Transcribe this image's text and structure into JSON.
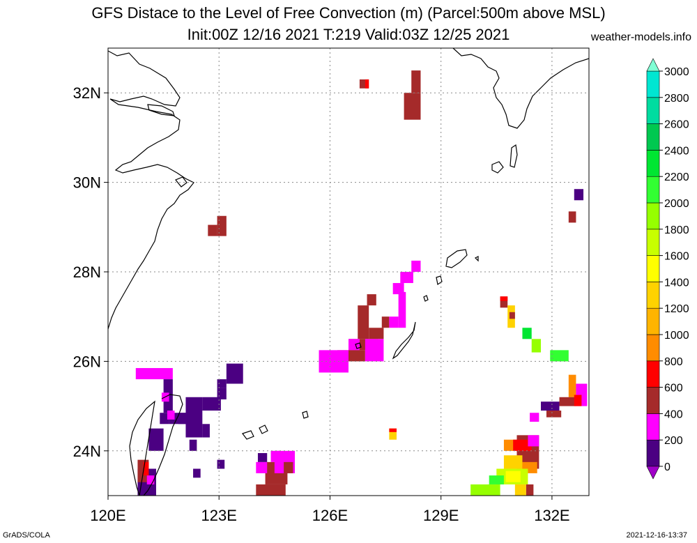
{
  "header": {
    "title_line1": "GFS Distace to the Level of Free Convection (m) (Parcel:500m above MSL)",
    "title_line2": "Init:00Z 12/16 2021 T:219 Valid:03Z 12/25 2021",
    "site": "weather-models.info"
  },
  "footer": {
    "left": "GrADS/COLA",
    "right": "2021-12-16-13:37"
  },
  "map": {
    "lon_range": [
      120,
      133
    ],
    "lat_range": [
      23,
      33
    ],
    "lon_ticks": [
      {
        "value": 120,
        "label": "120E"
      },
      {
        "value": 123,
        "label": "123E"
      },
      {
        "value": 126,
        "label": "126E"
      },
      {
        "value": 129,
        "label": "129E"
      },
      {
        "value": 132,
        "label": "132E"
      }
    ],
    "lat_ticks": [
      {
        "value": 24,
        "label": "24N"
      },
      {
        "value": 26,
        "label": "26N"
      },
      {
        "value": 28,
        "label": "28N"
      },
      {
        "value": 30,
        "label": "30N"
      },
      {
        "value": 32,
        "label": "32N"
      }
    ],
    "grid": true,
    "coastline_color": "#000000"
  },
  "colorbar": {
    "levels": [
      "0",
      "200",
      "400",
      "600",
      "800",
      "1000",
      "1200",
      "1400",
      "1600",
      "1800",
      "2000",
      "2200",
      "2400",
      "2600",
      "2800",
      "3000"
    ],
    "colors": [
      "#a000c8",
      "#4b0082",
      "#ff00ff",
      "#a52a2a",
      "#ff0000",
      "#ff8c00",
      "#ffb400",
      "#ffd200",
      "#ffff00",
      "#c8ff00",
      "#96ff00",
      "#32ff32",
      "#00e632",
      "#00c850",
      "#00dca0",
      "#00e6d2",
      "#00ffff"
    ],
    "ends": {
      "top_color": "#7fffd4",
      "bottom_color": "#a000c8"
    }
  },
  "field_cells": [
    {
      "lon": 126.8,
      "lat": 32.1,
      "w": 0.25,
      "h": 0.2,
      "color": "#a52a2a"
    },
    {
      "lon": 126.95,
      "lat": 32.1,
      "w": 0.1,
      "h": 0.2,
      "color": "#ff0000"
    },
    {
      "lon": 128.0,
      "lat": 31.4,
      "w": 0.45,
      "h": 0.6,
      "color": "#a52a2a"
    },
    {
      "lon": 128.2,
      "lat": 32.0,
      "w": 0.25,
      "h": 0.5,
      "color": "#a52a2a"
    },
    {
      "lon": 122.7,
      "lat": 28.8,
      "w": 0.25,
      "h": 0.25,
      "color": "#a52a2a"
    },
    {
      "lon": 122.95,
      "lat": 28.8,
      "w": 0.25,
      "h": 0.45,
      "color": "#a52a2a"
    },
    {
      "lon": 132.6,
      "lat": 29.6,
      "w": 0.25,
      "h": 0.25,
      "color": "#4b0082"
    },
    {
      "lon": 132.45,
      "lat": 29.1,
      "w": 0.2,
      "h": 0.25,
      "color": "#a52a2a"
    },
    {
      "lon": 128.2,
      "lat": 28.0,
      "w": 0.25,
      "h": 0.25,
      "color": "#ff00ff"
    },
    {
      "lon": 127.9,
      "lat": 27.75,
      "w": 0.35,
      "h": 0.25,
      "color": "#ff00ff"
    },
    {
      "lon": 127.7,
      "lat": 27.5,
      "w": 0.3,
      "h": 0.25,
      "color": "#ff00ff"
    },
    {
      "lon": 127.85,
      "lat": 26.75,
      "w": 0.2,
      "h": 0.8,
      "color": "#ff00ff"
    },
    {
      "lon": 127.6,
      "lat": 26.75,
      "w": 0.25,
      "h": 0.25,
      "color": "#ff00ff"
    },
    {
      "lon": 127.4,
      "lat": 26.75,
      "w": 0.2,
      "h": 0.25,
      "color": "#a52a2a"
    },
    {
      "lon": 127.0,
      "lat": 27.25,
      "w": 0.25,
      "h": 0.25,
      "color": "#a52a2a"
    },
    {
      "lon": 126.75,
      "lat": 26.5,
      "w": 0.3,
      "h": 0.75,
      "color": "#a52a2a"
    },
    {
      "lon": 127.05,
      "lat": 26.5,
      "w": 0.4,
      "h": 0.25,
      "color": "#a52a2a"
    },
    {
      "lon": 126.5,
      "lat": 26.25,
      "w": 0.8,
      "h": 0.25,
      "color": "#a52a2a"
    },
    {
      "lon": 126.2,
      "lat": 26.0,
      "w": 0.75,
      "h": 0.25,
      "color": "#a52a2a"
    },
    {
      "lon": 126.95,
      "lat": 26.0,
      "w": 0.5,
      "h": 0.5,
      "color": "#ff00ff"
    },
    {
      "lon": 125.7,
      "lat": 25.75,
      "w": 0.8,
      "h": 0.5,
      "color": "#ff00ff"
    },
    {
      "lon": 126.5,
      "lat": 26.25,
      "w": 0.3,
      "h": 0.25,
      "color": "#ff00ff"
    },
    {
      "lon": 120.75,
      "lat": 25.6,
      "w": 1.0,
      "h": 0.25,
      "color": "#ff00ff"
    },
    {
      "lon": 121.5,
      "lat": 24.85,
      "w": 0.25,
      "h": 0.75,
      "color": "#4b0082"
    },
    {
      "lon": 121.4,
      "lat": 24.6,
      "w": 0.25,
      "h": 0.25,
      "color": "#4b0082"
    },
    {
      "lon": 121.65,
      "lat": 24.6,
      "w": 0.5,
      "h": 0.25,
      "color": "#4b0082"
    },
    {
      "lon": 121.1,
      "lat": 24.0,
      "w": 0.4,
      "h": 0.5,
      "color": "#4b0082"
    },
    {
      "lon": 122.1,
      "lat": 24.3,
      "w": 0.45,
      "h": 0.9,
      "color": "#4b0082"
    },
    {
      "lon": 121.9,
      "lat": 24.6,
      "w": 0.25,
      "h": 0.25,
      "color": "#4b0082"
    },
    {
      "lon": 122.55,
      "lat": 24.3,
      "w": 0.2,
      "h": 0.3,
      "color": "#4b0082"
    },
    {
      "lon": 122.55,
      "lat": 24.9,
      "w": 0.5,
      "h": 0.3,
      "color": "#4b0082"
    },
    {
      "lon": 122.95,
      "lat": 25.15,
      "w": 0.25,
      "h": 0.25,
      "color": "#4b0082"
    },
    {
      "lon": 123.2,
      "lat": 25.5,
      "w": 0.45,
      "h": 0.45,
      "color": "#4b0082"
    },
    {
      "lon": 122.95,
      "lat": 25.4,
      "w": 0.25,
      "h": 0.2,
      "color": "#4b0082"
    },
    {
      "lon": 122.2,
      "lat": 24.0,
      "w": 0.2,
      "h": 0.25,
      "color": "#4b0082"
    },
    {
      "lon": 122.3,
      "lat": 23.4,
      "w": 0.2,
      "h": 0.2,
      "color": "#4b0082"
    },
    {
      "lon": 122.95,
      "lat": 23.6,
      "w": 0.2,
      "h": 0.2,
      "color": "#4b0082"
    },
    {
      "lon": 120.8,
      "lat": 23.0,
      "w": 0.5,
      "h": 0.6,
      "color": "#4b0082"
    },
    {
      "lon": 120.8,
      "lat": 23.3,
      "w": 0.3,
      "h": 0.5,
      "color": "#a52a2a"
    },
    {
      "lon": 120.95,
      "lat": 23.45,
      "w": 0.15,
      "h": 0.3,
      "color": "#ff0000"
    },
    {
      "lon": 121.05,
      "lat": 23.25,
      "w": 0.2,
      "h": 0.2,
      "color": "#ff00ff"
    },
    {
      "lon": 121.45,
      "lat": 25.1,
      "w": 0.2,
      "h": 0.2,
      "color": "#ff00ff"
    },
    {
      "lon": 121.6,
      "lat": 24.7,
      "w": 0.2,
      "h": 0.2,
      "color": "#ff00ff"
    },
    {
      "lon": 124.0,
      "lat": 23.0,
      "w": 0.8,
      "h": 0.25,
      "color": "#a52a2a"
    },
    {
      "lon": 124.25,
      "lat": 23.25,
      "w": 0.6,
      "h": 0.5,
      "color": "#a52a2a"
    },
    {
      "lon": 124.0,
      "lat": 23.5,
      "w": 0.3,
      "h": 0.25,
      "color": "#ff00ff"
    },
    {
      "lon": 124.5,
      "lat": 23.5,
      "w": 0.55,
      "h": 0.5,
      "color": "#ff00ff"
    },
    {
      "lon": 124.75,
      "lat": 23.5,
      "w": 0.25,
      "h": 0.25,
      "color": "#a52a2a"
    },
    {
      "lon": 124.4,
      "lat": 23.75,
      "w": 0.25,
      "h": 0.25,
      "color": "#ff00ff"
    },
    {
      "lon": 124.05,
      "lat": 23.75,
      "w": 0.25,
      "h": 0.2,
      "color": "#4b0082"
    },
    {
      "lon": 127.6,
      "lat": 24.25,
      "w": 0.2,
      "h": 0.25,
      "color": "#ffd200"
    },
    {
      "lon": 127.6,
      "lat": 24.42,
      "w": 0.2,
      "h": 0.08,
      "color": "#ff0000"
    },
    {
      "lon": 130.6,
      "lat": 27.2,
      "w": 0.2,
      "h": 0.25,
      "color": "#a52a2a"
    },
    {
      "lon": 130.6,
      "lat": 27.35,
      "w": 0.2,
      "h": 0.1,
      "color": "#ff0000"
    },
    {
      "lon": 130.8,
      "lat": 26.75,
      "w": 0.2,
      "h": 0.5,
      "color": "#ffd200"
    },
    {
      "lon": 130.85,
      "lat": 26.95,
      "w": 0.15,
      "h": 0.15,
      "color": "#a52a2a"
    },
    {
      "lon": 131.2,
      "lat": 26.5,
      "w": 0.25,
      "h": 0.25,
      "color": "#00e632"
    },
    {
      "lon": 131.45,
      "lat": 26.2,
      "w": 0.25,
      "h": 0.3,
      "color": "#96ff00"
    },
    {
      "lon": 131.95,
      "lat": 26.0,
      "w": 0.5,
      "h": 0.25,
      "color": "#32ff32"
    },
    {
      "lon": 132.45,
      "lat": 25.2,
      "w": 0.2,
      "h": 0.5,
      "color": "#ff8c00"
    },
    {
      "lon": 132.2,
      "lat": 25.0,
      "w": 0.45,
      "h": 0.2,
      "color": "#a52a2a"
    },
    {
      "lon": 132.65,
      "lat": 25.0,
      "w": 0.3,
      "h": 0.5,
      "color": "#ff00ff"
    },
    {
      "lon": 132.6,
      "lat": 25.0,
      "w": 0.2,
      "h": 0.25,
      "color": "#ff0000"
    },
    {
      "lon": 131.7,
      "lat": 24.9,
      "w": 0.5,
      "h": 0.2,
      "color": "#4b0082"
    },
    {
      "lon": 131.85,
      "lat": 24.75,
      "w": 0.4,
      "h": 0.15,
      "color": "#a52a2a"
    },
    {
      "lon": 131.4,
      "lat": 24.65,
      "w": 0.25,
      "h": 0.2,
      "color": "#ff00ff"
    },
    {
      "lon": 130.7,
      "lat": 24.0,
      "w": 0.5,
      "h": 0.25,
      "color": "#ff8c00"
    },
    {
      "lon": 131.05,
      "lat": 23.6,
      "w": 0.6,
      "h": 0.75,
      "color": "#a52a2a"
    },
    {
      "lon": 130.95,
      "lat": 24.0,
      "w": 0.5,
      "h": 0.25,
      "color": "#ff0000"
    },
    {
      "lon": 131.35,
      "lat": 24.1,
      "w": 0.3,
      "h": 0.25,
      "color": "#ff00ff"
    },
    {
      "lon": 130.7,
      "lat": 23.6,
      "w": 0.5,
      "h": 0.3,
      "color": "#ffd200"
    },
    {
      "lon": 131.2,
      "lat": 23.5,
      "w": 0.4,
      "h": 0.25,
      "color": "#ff8c00"
    },
    {
      "lon": 130.5,
      "lat": 23.25,
      "w": 0.85,
      "h": 0.35,
      "color": "#c8ff00"
    },
    {
      "lon": 130.75,
      "lat": 23.3,
      "w": 0.4,
      "h": 0.25,
      "color": "#ffff00"
    },
    {
      "lon": 129.8,
      "lat": 23.0,
      "w": 0.8,
      "h": 0.25,
      "color": "#96ff00"
    },
    {
      "lon": 130.3,
      "lat": 23.25,
      "w": 0.4,
      "h": 0.2,
      "color": "#32ff32"
    },
    {
      "lon": 131.3,
      "lat": 23.0,
      "w": 0.2,
      "h": 0.25,
      "color": "#a52a2a"
    },
    {
      "lon": 131.0,
      "lat": 23.0,
      "w": 0.3,
      "h": 0.25,
      "color": "#ffd200"
    }
  ]
}
